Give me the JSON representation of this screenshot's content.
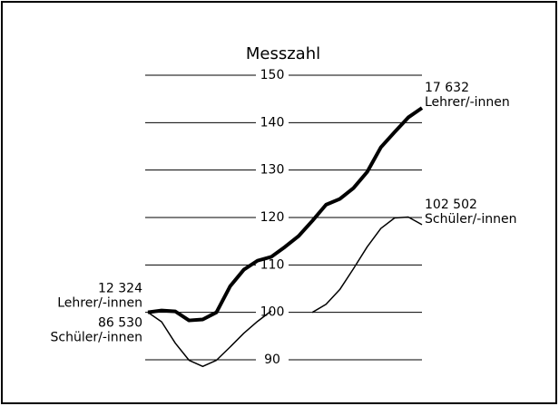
{
  "chart_data": {
    "type": "line",
    "title": "Messzahl",
    "x": [
      0,
      1,
      2,
      3,
      4,
      5,
      6,
      7,
      8,
      9,
      10,
      11,
      12,
      13,
      14,
      15,
      16,
      17,
      18,
      19,
      20
    ],
    "series": [
      {
        "name": "Lehrer/-innen",
        "color": "#000000",
        "width": 4,
        "values": [
          100,
          100.4,
          100.2,
          98.3,
          98.5,
          100,
          105.5,
          109,
          110.9,
          111.7,
          113.8,
          116.1,
          119.3,
          122.7,
          123.9,
          126.2,
          129.6,
          134.8,
          138,
          141.1,
          143.1
        ]
      },
      {
        "name": "Schüler/-innen",
        "color": "#000000",
        "width": 1.5,
        "values": [
          100,
          98,
          93.5,
          89.9,
          88.6,
          89.9,
          92.7,
          95.6,
          98.1,
          100.3,
          null,
          null,
          100,
          101.7,
          104.8,
          109.2,
          113.8,
          117.7,
          119.9,
          120.1,
          118.5
        ]
      }
    ],
    "xlim": [
      0,
      20
    ],
    "ylim": [
      90,
      150
    ],
    "yticks": [
      90,
      100,
      110,
      120,
      130,
      140,
      150
    ],
    "grid": true,
    "annotations": [
      {
        "lines": [
          "17 632",
          "Lehrer/-innen"
        ],
        "side": "right",
        "series": 0
      },
      {
        "lines": [
          "102 502",
          "Schüler/-innen"
        ],
        "side": "right",
        "series": 1
      },
      {
        "lines": [
          "12 324",
          "Lehrer/-innen"
        ],
        "side": "left",
        "series": 0
      },
      {
        "lines": [
          "86 530",
          "Schüler/-innen"
        ],
        "side": "left",
        "series": 1
      }
    ]
  }
}
